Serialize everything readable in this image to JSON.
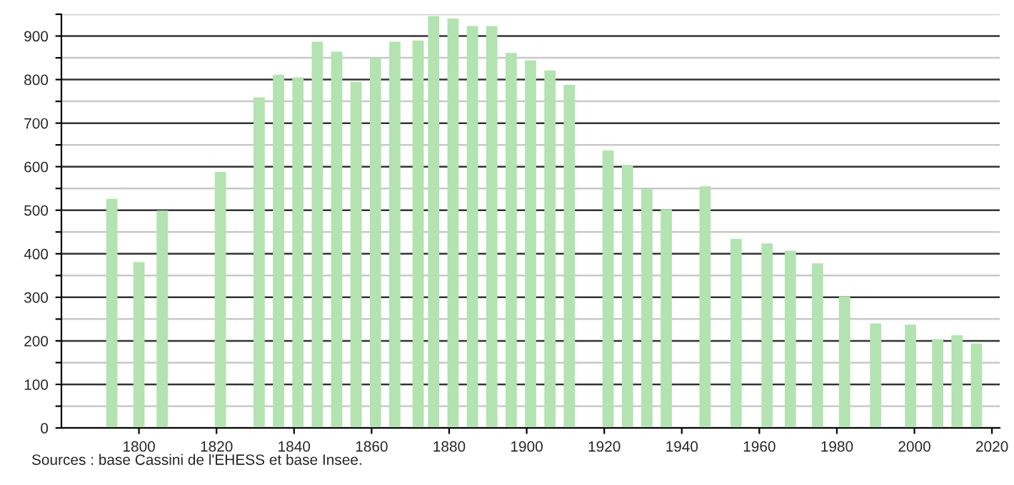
{
  "chart_data": {
    "type": "bar",
    "x": [
      1793,
      1800,
      1806,
      1821,
      1831,
      1836,
      1841,
      1846,
      1851,
      1856,
      1861,
      1866,
      1872,
      1876,
      1881,
      1886,
      1891,
      1896,
      1901,
      1906,
      1911,
      1921,
      1926,
      1931,
      1936,
      1946,
      1954,
      1962,
      1968,
      1975,
      1982,
      1990,
      1999,
      2006,
      2011,
      2016
    ],
    "values": [
      526,
      381,
      499,
      588,
      759,
      811,
      805,
      887,
      864,
      795,
      849,
      887,
      890,
      946,
      940,
      923,
      923,
      861,
      844,
      821,
      788,
      637,
      604,
      549,
      502,
      555,
      434,
      424,
      407,
      378,
      302,
      240,
      237,
      204,
      213,
      194
    ],
    "color": "#b3e3b0",
    "xlim": [
      1780,
      2022
    ],
    "xticks": [
      1800,
      1820,
      1840,
      1860,
      1880,
      1900,
      1920,
      1940,
      1960,
      1980,
      2000,
      2020
    ],
    "ylim": [
      0,
      950
    ],
    "yticks": [
      0,
      {
        "value": 50,
        "label": null
      },
      100,
      {
        "value": 150,
        "label": null
      },
      200,
      {
        "value": 250,
        "label": null
      },
      300,
      {
        "value": 350,
        "label": null
      },
      400,
      {
        "value": 450,
        "label": null
      },
      500,
      {
        "value": 550,
        "label": null
      },
      600,
      {
        "value": 650,
        "label": null
      },
      700,
      {
        "value": 750,
        "label": null
      },
      800,
      {
        "value": 850,
        "label": null
      },
      900,
      {
        "value": 950,
        "label": null
      }
    ],
    "grid": "y",
    "annotations": [
      "Sources : base Cassini de l'EHESS et base Insee."
    ]
  }
}
